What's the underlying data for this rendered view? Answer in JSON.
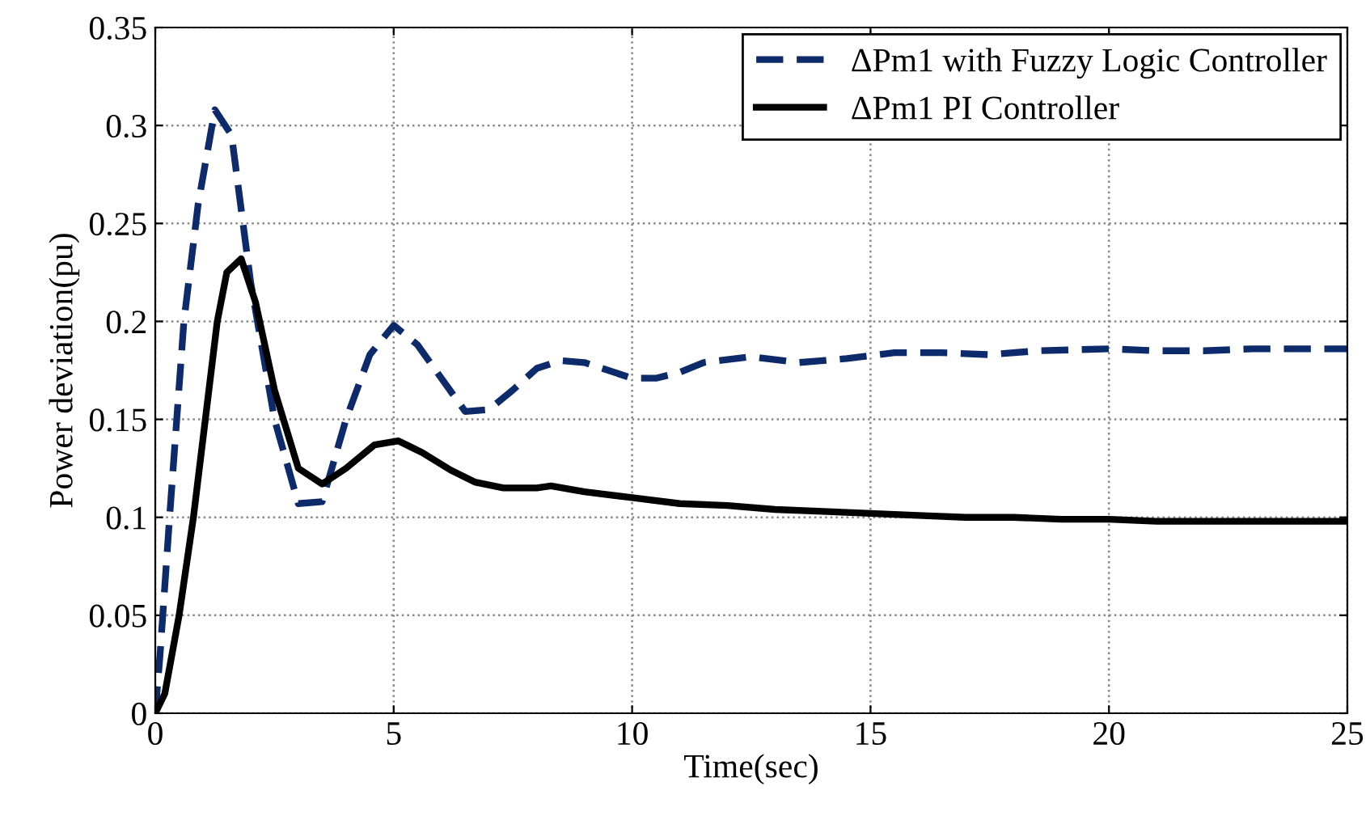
{
  "chart_data": {
    "type": "line",
    "xlabel": "Time(sec)",
    "ylabel": "Power deviation(pu)",
    "xlim": [
      0,
      25
    ],
    "xticks": [
      0,
      5,
      10,
      15,
      20,
      25
    ],
    "ylim": [
      0,
      0.35
    ],
    "yticks": [
      0,
      0.05,
      0.1,
      0.15,
      0.2,
      0.25,
      0.3,
      0.35
    ],
    "grid": true,
    "legend": "top right",
    "series": [
      {
        "name": "ΔPm1 with Fuzzy Logic Controller",
        "color": "#0d2b6b",
        "line_style": "dashed",
        "x": [
          0,
          0.1,
          0.3,
          0.6,
          0.9,
          1.25,
          1.6,
          2.0,
          2.5,
          3.0,
          3.5,
          4.0,
          4.5,
          5.0,
          5.5,
          6.5,
          7.0,
          7.5,
          8.0,
          8.5,
          9.0,
          10,
          10.5,
          11,
          11.5,
          12.5,
          13.5,
          14.5,
          15.5,
          16.5,
          17.5,
          18.5,
          20,
          21,
          22,
          23,
          25
        ],
        "values": [
          0,
          0.03,
          0.1,
          0.2,
          0.26,
          0.308,
          0.295,
          0.22,
          0.15,
          0.107,
          0.108,
          0.15,
          0.183,
          0.198,
          0.188,
          0.154,
          0.155,
          0.165,
          0.176,
          0.18,
          0.179,
          0.171,
          0.171,
          0.174,
          0.179,
          0.182,
          0.179,
          0.181,
          0.184,
          0.184,
          0.183,
          0.185,
          0.186,
          0.185,
          0.185,
          0.186,
          0.186
        ]
      },
      {
        "name": "ΔPm1 PI Controller",
        "color": "#000000",
        "line_style": "solid",
        "x": [
          0,
          0.2,
          0.5,
          0.8,
          1.1,
          1.3,
          1.5,
          1.8,
          2.1,
          2.5,
          3.0,
          3.5,
          4.0,
          4.6,
          5.1,
          5.6,
          6.2,
          6.7,
          7.3,
          8.0,
          8.3,
          9.0,
          10,
          11,
          12,
          13,
          14,
          15,
          16,
          17,
          18,
          19,
          20,
          21,
          25
        ],
        "values": [
          0,
          0.01,
          0.05,
          0.1,
          0.16,
          0.2,
          0.225,
          0.232,
          0.21,
          0.165,
          0.125,
          0.117,
          0.125,
          0.137,
          0.139,
          0.133,
          0.124,
          0.118,
          0.115,
          0.115,
          0.116,
          0.113,
          0.11,
          0.107,
          0.106,
          0.104,
          0.103,
          0.102,
          0.101,
          0.1,
          0.1,
          0.099,
          0.099,
          0.098,
          0.098
        ]
      }
    ]
  }
}
